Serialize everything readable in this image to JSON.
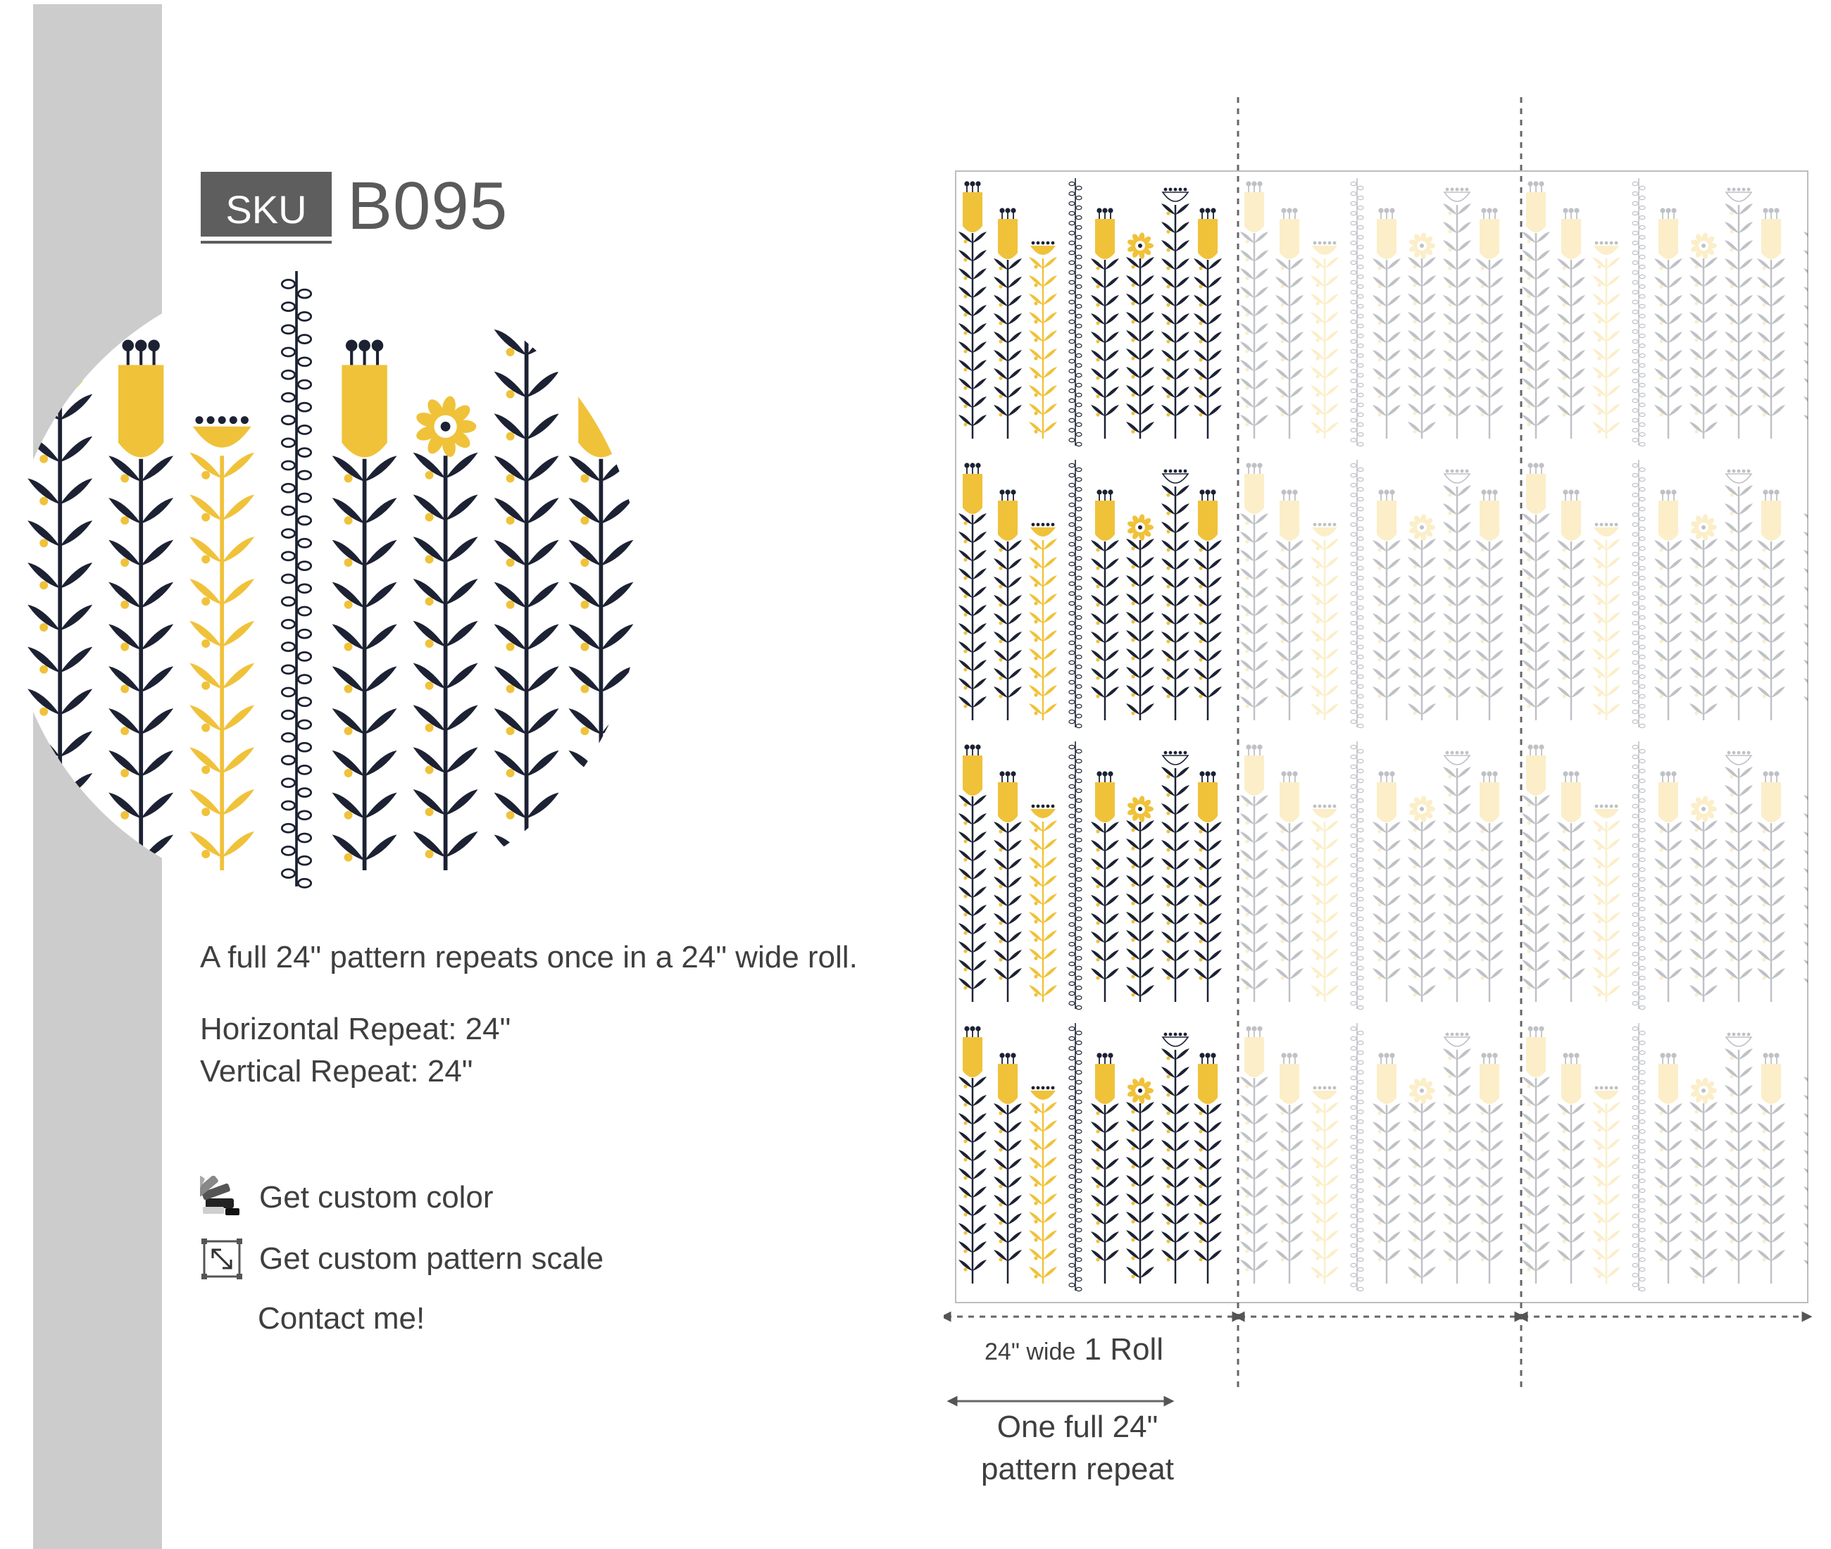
{
  "sku": {
    "label": "SKU",
    "code": "B095"
  },
  "description": {
    "summary": "A full 24\" pattern repeats once in a 24\" wide roll.",
    "horizontal_repeat": "Horizontal Repeat: 24\"",
    "vertical_repeat": "Vertical Repeat: 24\""
  },
  "options": [
    {
      "icon": "color-fan-icon",
      "label": "Get custom color"
    },
    {
      "icon": "resize-icon",
      "label": "Get custom pattern scale"
    }
  ],
  "contact_label": "Contact me!",
  "roll_diagram": {
    "width_small": "24\" wide",
    "roll_label": "1 Roll",
    "repeat_line1": "One full 24\"",
    "repeat_line2": "pattern repeat"
  },
  "colors": {
    "mustard": "#f0c23a",
    "navy": "#1c2233",
    "sidebar": "#cccccc",
    "badge": "#5e5e5e"
  }
}
